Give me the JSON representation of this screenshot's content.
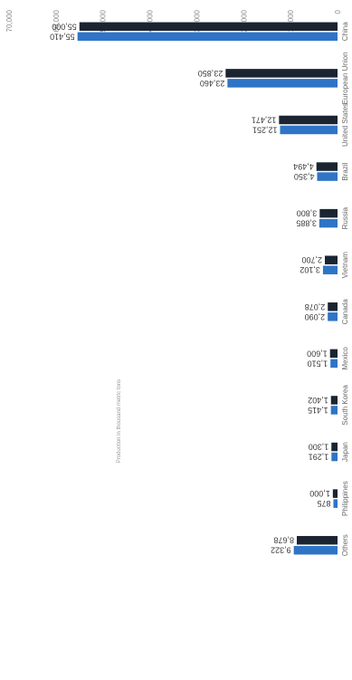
{
  "chart_data": {
    "type": "bar",
    "orientation": "vertical, rendered rotated 90 degrees clockwise",
    "title": "",
    "xlabel": "",
    "ylabel": "Production in thousand metric tons",
    "ylim": [
      0,
      70000
    ],
    "y_ticks": [
      "0",
      "10,000",
      "20,000",
      "30,000",
      "40,000",
      "50,000",
      "60,000",
      "70,000"
    ],
    "grid": false,
    "legend": "none",
    "categories": [
      "China",
      "European Union",
      "United States",
      "Brazil",
      "Russia",
      "Vietnam",
      "Canada",
      "Mexico",
      "South Korea",
      "Japan",
      "Philippines",
      "Others"
    ],
    "series": [
      {
        "color": "#1b2431",
        "values": [
          55000,
          23850,
          12471,
          4494,
          3800,
          2700,
          2078,
          1600,
          1402,
          1300,
          1000,
          8678
        ],
        "labels": [
          "55,000",
          "23,850",
          "12,471",
          "4,494",
          "3,800",
          "2,700",
          "2,078",
          "1,600",
          "1,402",
          "1,300",
          "1,000",
          "8,678"
        ]
      },
      {
        "color": "#2f74c6",
        "values": [
          55410,
          23460,
          12251,
          4350,
          3885,
          3102,
          2090,
          1510,
          1415,
          1291,
          875,
          9322
        ],
        "labels": [
          "55,410",
          "23,460",
          "12,251",
          "4,350",
          "3,885",
          "3,102",
          "2,090",
          "1,510",
          "1,415",
          "1,291",
          "875",
          "9,322"
        ]
      }
    ]
  }
}
